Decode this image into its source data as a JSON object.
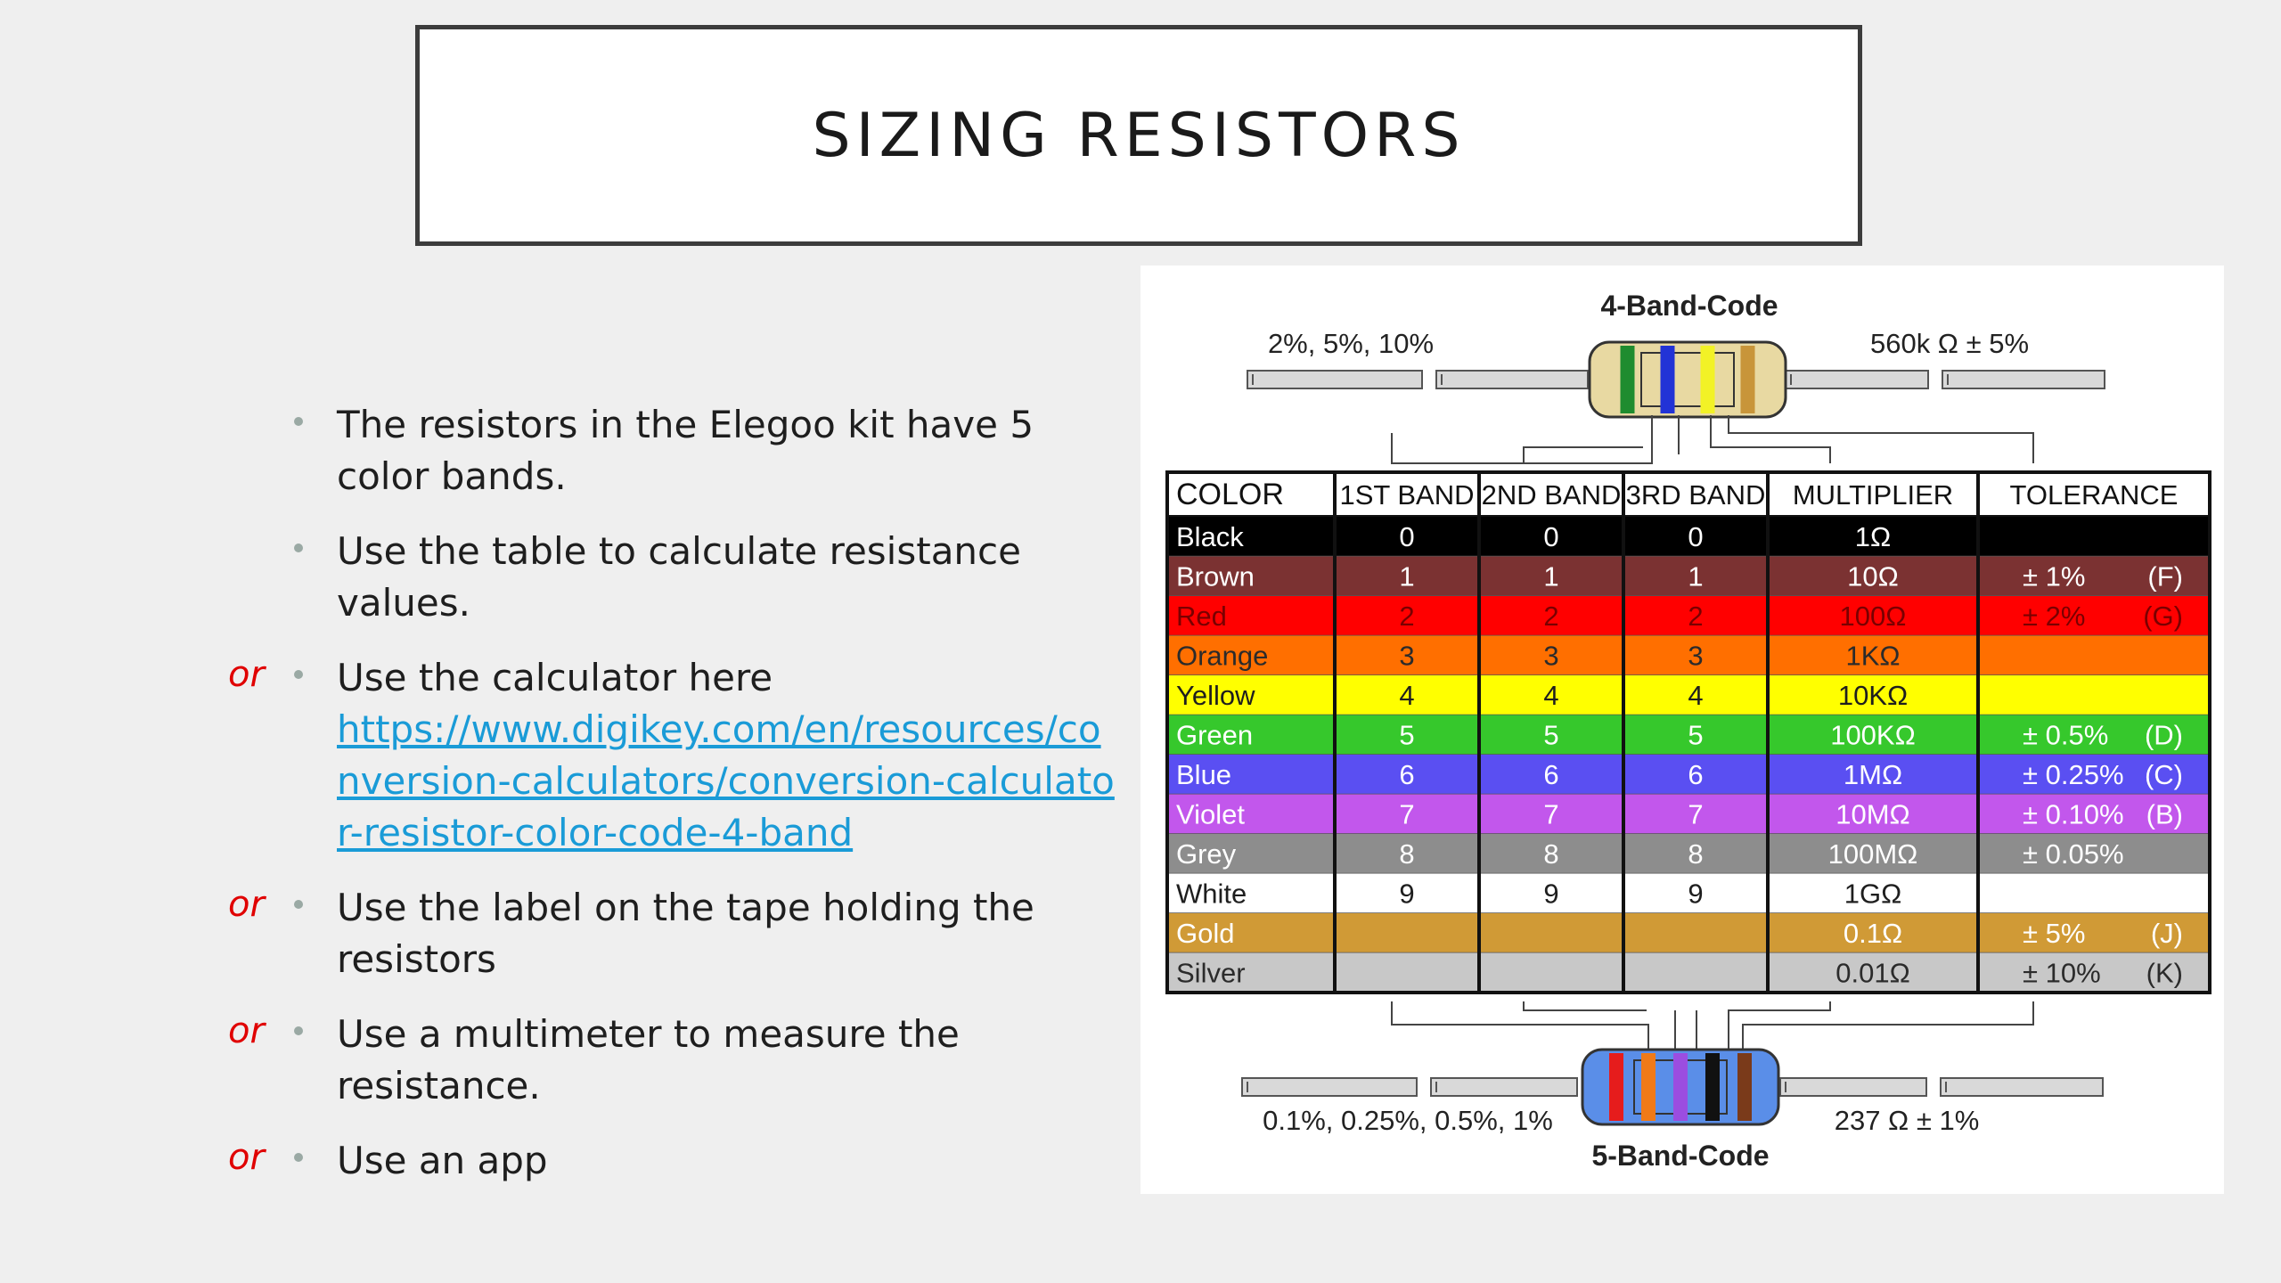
{
  "slide": {
    "title": "SIZING RESISTORS"
  },
  "bullets": [
    {
      "or": "",
      "text": "The resistors in the Elegoo kit have 5 color bands.",
      "link": ""
    },
    {
      "or": "",
      "text": "Use the table to calculate resistance values.",
      "link": ""
    },
    {
      "or": "or",
      "text": "Use the calculator here",
      "link": "https://www.digikey.com/en/resources/conversion-calculators/conversion-calculator-resistor-color-code-4-band"
    },
    {
      "or": "or",
      "text": "Use the label on the tape holding the resistors",
      "link": ""
    },
    {
      "or": "or",
      "text": "Use a multimeter to measure the resistance.",
      "link": ""
    },
    {
      "or": "or",
      "text": "Use an app",
      "link": ""
    }
  ],
  "diagram": {
    "four_band_title": "4-Band-Code",
    "four_band_left_label": "2%, 5%, 10%",
    "four_band_right_label": "560k Ω   ± 5%",
    "five_band_title": "5-Band-Code",
    "five_band_left_label": "0.1%, 0.25%, 0.5%, 1%",
    "five_band_right_label": "237 Ω   ± 1%",
    "four_band_colors": [
      "#1f8c2f",
      "#2233d6",
      "#f2f226",
      "#c8953a"
    ],
    "five_band_colors": [
      "#e61c1c",
      "#f07a18",
      "#9b4de0",
      "#111111",
      "#7a3a1a"
    ]
  },
  "table": {
    "headers": [
      "COLOR",
      "1ST BAND",
      "2ND BAND",
      "3RD BAND",
      "MULTIPLIER",
      "TOLERANCE"
    ],
    "rows": [
      {
        "color": "Black",
        "b1": "0",
        "b2": "0",
        "b3": "0",
        "mult": "1Ω",
        "tol": "",
        "code": "",
        "bg": "#000000",
        "fg": "#ffffff"
      },
      {
        "color": "Brown",
        "b1": "1",
        "b2": "1",
        "b3": "1",
        "mult": "10Ω",
        "tol": "± 1%",
        "code": "(F)",
        "bg": "#7b3232",
        "fg": "#ffffff"
      },
      {
        "color": "Red",
        "b1": "2",
        "b2": "2",
        "b3": "2",
        "mult": "100Ω",
        "tol": "± 2%",
        "code": "(G)",
        "bg": "#ff0000",
        "fg": "#7a0000"
      },
      {
        "color": "Orange",
        "b1": "3",
        "b2": "3",
        "b3": "3",
        "mult": "1KΩ",
        "tol": "",
        "code": "",
        "bg": "#ff6f00",
        "fg": "#2b2b2b"
      },
      {
        "color": "Yellow",
        "b1": "4",
        "b2": "4",
        "b3": "4",
        "mult": "10KΩ",
        "tol": "",
        "code": "",
        "bg": "#ffff00",
        "fg": "#1e1e1e"
      },
      {
        "color": "Green",
        "b1": "5",
        "b2": "5",
        "b3": "5",
        "mult": "100KΩ",
        "tol": "± 0.5%",
        "code": "(D)",
        "bg": "#36c82c",
        "fg": "#ffffff"
      },
      {
        "color": "Blue",
        "b1": "6",
        "b2": "6",
        "b3": "6",
        "mult": "1MΩ",
        "tol": "± 0.25%",
        "code": "(C)",
        "bg": "#5a4ff2",
        "fg": "#ffffff"
      },
      {
        "color": "Violet",
        "b1": "7",
        "b2": "7",
        "b3": "7",
        "mult": "10MΩ",
        "tol": "± 0.10%",
        "code": "(B)",
        "bg": "#c257ec",
        "fg": "#ffffff"
      },
      {
        "color": "Grey",
        "b1": "8",
        "b2": "8",
        "b3": "8",
        "mult": "100MΩ",
        "tol": "± 0.05%",
        "code": "",
        "bg": "#8d8d8d",
        "fg": "#ffffff"
      },
      {
        "color": "White",
        "b1": "9",
        "b2": "9",
        "b3": "9",
        "mult": "1GΩ",
        "tol": "",
        "code": "",
        "bg": "#ffffff",
        "fg": "#1e1e1e"
      },
      {
        "color": "Gold",
        "b1": "",
        "b2": "",
        "b3": "",
        "mult": "0.1Ω",
        "tol": "± 5%",
        "code": "(J)",
        "bg": "#d09a36",
        "fg": "#ffffff"
      },
      {
        "color": "Silver",
        "b1": "",
        "b2": "",
        "b3": "",
        "mult": "0.01Ω",
        "tol": "± 10%",
        "code": "(K)",
        "bg": "#c8c8c8",
        "fg": "#2b2b2b"
      }
    ]
  }
}
